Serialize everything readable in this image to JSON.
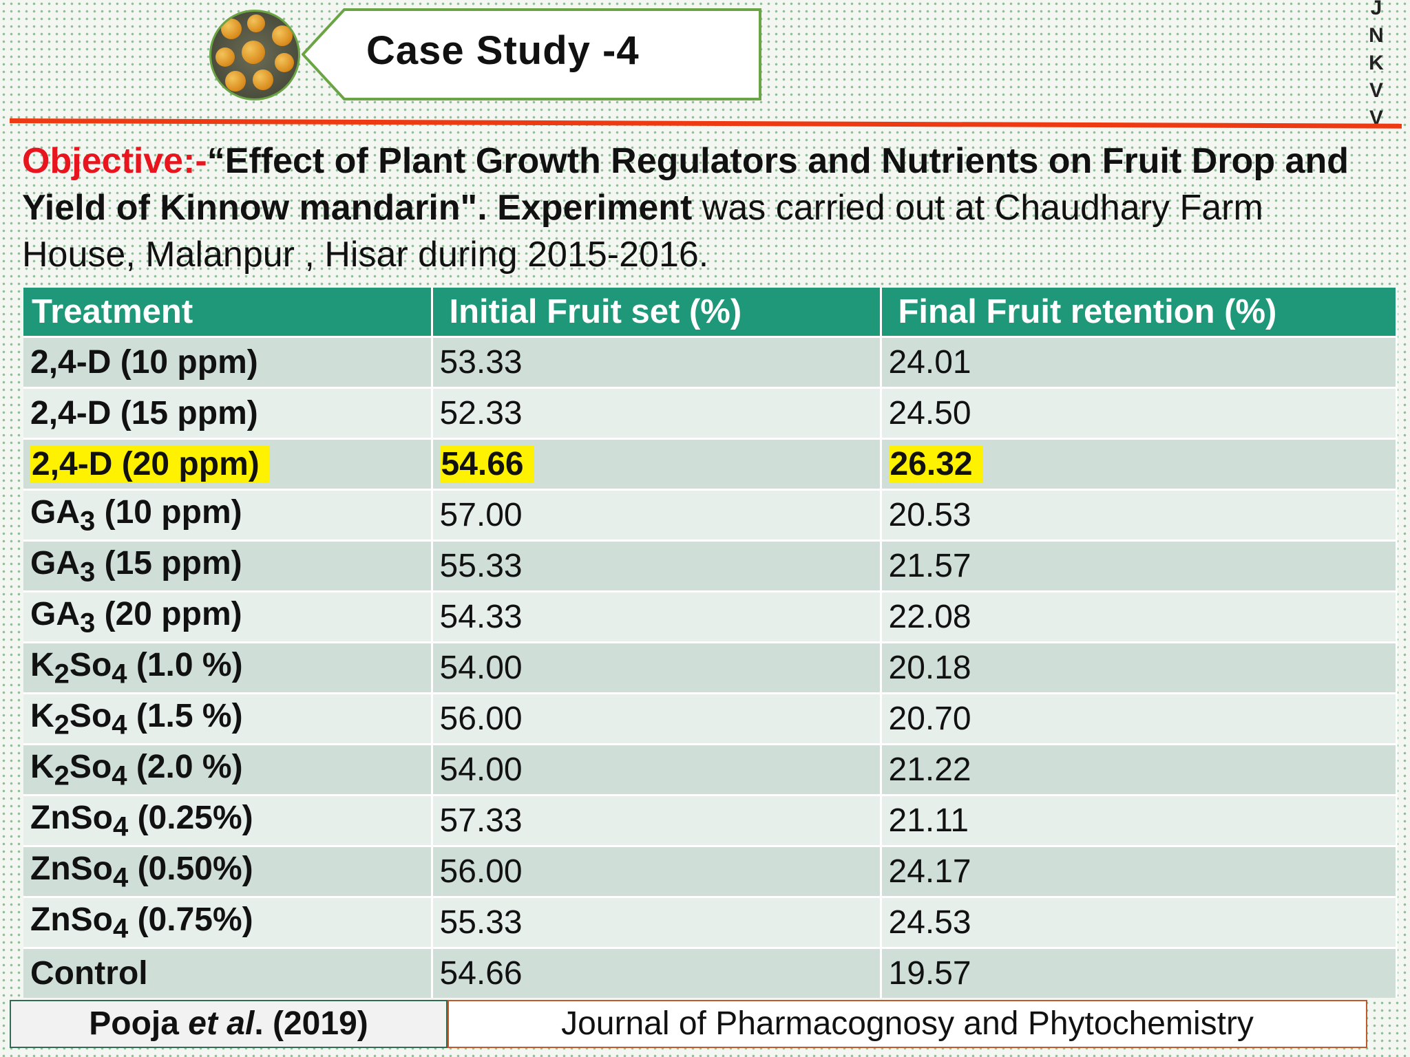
{
  "header": {
    "title": "Case Study -4",
    "side_letters": [
      "J",
      "N",
      "K",
      "V",
      "V"
    ]
  },
  "objective": {
    "label": "Objective:-",
    "title_text": "“Effect of Plant Growth Regulators  and Nutrients on Fruit Drop and Yield of Kinnow mandarin\".",
    "experiment_word": "Experiment",
    "detail_text": "was carried out at Chaudhary Farm House, Malanpur , Hisar during 2015-2016."
  },
  "table": {
    "headers": [
      "Treatment",
      "Initial Fruit set  (%)",
      "Final Fruit retention (%)"
    ],
    "rows": [
      {
        "t_main": "2,4-D (10 ppm)",
        "t_sub": "",
        "t_rest": "",
        "initial": "53.33",
        "final": "24.01",
        "highlight": false
      },
      {
        "t_main": "2,4-D (15 ppm)",
        "t_sub": "",
        "t_rest": "",
        "initial": "52.33",
        "final": "24.50",
        "highlight": false
      },
      {
        "t_main": "2,4-D (20 ppm)",
        "t_sub": "",
        "t_rest": "",
        "initial": "54.66",
        "final": "26.32",
        "highlight": true
      },
      {
        "t_main": "GA",
        "t_sub": "3",
        "t_rest": " (10 ppm)",
        "initial": "57.00",
        "final": "20.53",
        "highlight": false
      },
      {
        "t_main": "GA",
        "t_sub": "3",
        "t_rest": " (15 ppm)",
        "initial": "55.33",
        "final": "21.57",
        "highlight": false
      },
      {
        "t_main": "GA",
        "t_sub": "3",
        "t_rest": " (20 ppm)",
        "initial": "54.33",
        "final": "22.08",
        "highlight": false
      },
      {
        "t_main": "K",
        "t_sub": "2",
        "t_rest": "So",
        "t_sub2": "4",
        "t_rest2": " (1.0 %)",
        "initial": "54.00",
        "final": "20.18",
        "highlight": false
      },
      {
        "t_main": "K",
        "t_sub": "2",
        "t_rest": "So",
        "t_sub2": "4",
        "t_rest2": " (1.5 %)",
        "initial": "56.00",
        "final": "20.70",
        "highlight": false
      },
      {
        "t_main": "K",
        "t_sub": "2",
        "t_rest": "So",
        "t_sub2": "4",
        "t_rest2": " (2.0 %)",
        "initial": "54.00",
        "final": "21.22",
        "highlight": false
      },
      {
        "t_main": "ZnSo",
        "t_sub": "4",
        "t_rest": " (0.25%)",
        "initial": "57.33",
        "final": "21.11",
        "highlight": false
      },
      {
        "t_main": "ZnSo",
        "t_sub": "4",
        "t_rest": " (0.50%)",
        "initial": "56.00",
        "final": "24.17",
        "highlight": false
      },
      {
        "t_main": "ZnSo",
        "t_sub": "4",
        "t_rest": " (0.75%)",
        "initial": "55.33",
        "final": "24.53",
        "highlight": false
      },
      {
        "t_main": "Control",
        "t_sub": "",
        "t_rest": "",
        "initial": "54.66",
        "final": "19.57",
        "highlight": false
      }
    ]
  },
  "footer": {
    "author": "Pooja",
    "etal": "et al",
    "year": ". (2019)",
    "journal": "Journal of Pharmacognosy and Phytochemistry"
  }
}
